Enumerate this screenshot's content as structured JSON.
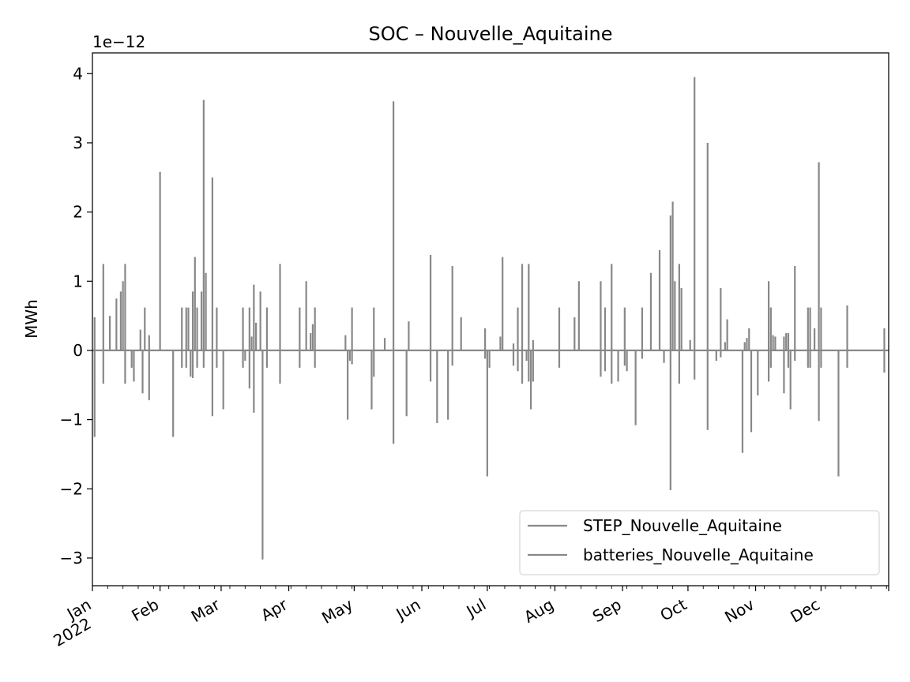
{
  "chart_data": {
    "type": "line",
    "title": "SOC – Nouvelle_Aquitaine",
    "ylabel": "MWh",
    "xlabel": "",
    "y_offset_label": "1e−12",
    "y_scale_factor": 1e-12,
    "xlim": [
      "2022-01-01",
      "2023-01-01"
    ],
    "ylim": [
      -3.4,
      4.3
    ],
    "y_ticks": [
      -3,
      -2,
      -1,
      0,
      1,
      2,
      3,
      4
    ],
    "y_tick_labels": [
      "−3",
      "−2",
      "−1",
      "0",
      "1",
      "2",
      "3",
      "4"
    ],
    "x_tick_labels": [
      {
        "date": "2022-01-01",
        "label": "Jan",
        "label2": "2022"
      },
      {
        "date": "2022-02-01",
        "label": "Feb"
      },
      {
        "date": "2022-03-01",
        "label": "Mar"
      },
      {
        "date": "2022-04-01",
        "label": "Apr"
      },
      {
        "date": "2022-05-01",
        "label": "May"
      },
      {
        "date": "2022-06-01",
        "label": "Jun"
      },
      {
        "date": "2022-07-01",
        "label": "Jul"
      },
      {
        "date": "2022-08-01",
        "label": "Aug"
      },
      {
        "date": "2022-09-01",
        "label": "Sep"
      },
      {
        "date": "2022-10-01",
        "label": "Oct"
      },
      {
        "date": "2022-11-01",
        "label": "Nov"
      },
      {
        "date": "2022-12-01",
        "label": "Dec"
      }
    ],
    "legend_position": "lower-right",
    "grid": false,
    "series": [
      {
        "name": "STEP_Nouvelle_Aquitaine",
        "color": "#888888",
        "baseline": 0,
        "values": [
          0,
          0
        ]
      },
      {
        "name": "batteries_Nouvelle_Aquitaine",
        "color": "#888888",
        "baseline": 0,
        "spikes": [
          [
            "2022-01-02",
            -1.25
          ],
          [
            "2022-01-02",
            0.48
          ],
          [
            "2022-01-06",
            1.25
          ],
          [
            "2022-01-06",
            -0.48
          ],
          [
            "2022-01-09",
            0.5
          ],
          [
            "2022-01-12",
            0.75
          ],
          [
            "2022-01-14",
            0.85
          ],
          [
            "2022-01-15",
            1.0
          ],
          [
            "2022-01-16",
            1.25
          ],
          [
            "2022-01-16",
            -0.48
          ],
          [
            "2022-01-19",
            -0.25
          ],
          [
            "2022-01-20",
            -0.45
          ],
          [
            "2022-01-23",
            0.3
          ],
          [
            "2022-01-24",
            -0.62
          ],
          [
            "2022-01-25",
            0.62
          ],
          [
            "2022-01-27",
            -0.72
          ],
          [
            "2022-01-27",
            0.22
          ],
          [
            "2022-02-01",
            2.58
          ],
          [
            "2022-02-07",
            -1.25
          ],
          [
            "2022-02-11",
            0.62
          ],
          [
            "2022-02-11",
            -0.25
          ],
          [
            "2022-02-13",
            0.62
          ],
          [
            "2022-02-13",
            -0.25
          ],
          [
            "2022-02-14",
            0.62
          ],
          [
            "2022-02-15",
            -0.38
          ],
          [
            "2022-02-16",
            0.85
          ],
          [
            "2022-02-16",
            -0.4
          ],
          [
            "2022-02-17",
            1.35
          ],
          [
            "2022-02-18",
            0.62
          ],
          [
            "2022-02-18",
            -0.25
          ],
          [
            "2022-02-20",
            0.85
          ],
          [
            "2022-02-21",
            3.62
          ],
          [
            "2022-02-21",
            -0.25
          ],
          [
            "2022-02-22",
            1.12
          ],
          [
            "2022-02-25",
            -0.95
          ],
          [
            "2022-02-25",
            2.5
          ],
          [
            "2022-02-27",
            0.62
          ],
          [
            "2022-02-27",
            -0.25
          ],
          [
            "2022-03-02",
            -0.85
          ],
          [
            "2022-03-11",
            0.62
          ],
          [
            "2022-03-11",
            -0.25
          ],
          [
            "2022-03-12",
            -0.15
          ],
          [
            "2022-03-14",
            0.62
          ],
          [
            "2022-03-14",
            -0.55
          ],
          [
            "2022-03-15",
            0.2
          ],
          [
            "2022-03-16",
            0.95
          ],
          [
            "2022-03-16",
            -0.9
          ],
          [
            "2022-03-17",
            0.4
          ],
          [
            "2022-03-19",
            0.85
          ],
          [
            "2022-03-20",
            -3.02
          ],
          [
            "2022-03-22",
            0.62
          ],
          [
            "2022-03-22",
            -0.25
          ],
          [
            "2022-03-28",
            1.25
          ],
          [
            "2022-03-28",
            -0.48
          ],
          [
            "2022-04-06",
            0.62
          ],
          [
            "2022-04-06",
            -0.25
          ],
          [
            "2022-04-09",
            1.0
          ],
          [
            "2022-04-11",
            0.25
          ],
          [
            "2022-04-12",
            0.38
          ],
          [
            "2022-04-13",
            0.62
          ],
          [
            "2022-04-13",
            -0.25
          ],
          [
            "2022-04-27",
            0.22
          ],
          [
            "2022-04-28",
            -1.0
          ],
          [
            "2022-04-29",
            -0.15
          ],
          [
            "2022-04-30",
            0.62
          ],
          [
            "2022-04-30",
            -0.2
          ],
          [
            "2022-05-09",
            -0.85
          ],
          [
            "2022-05-10",
            0.62
          ],
          [
            "2022-05-10",
            -0.38
          ],
          [
            "2022-05-15",
            0.18
          ],
          [
            "2022-05-19",
            3.6
          ],
          [
            "2022-05-19",
            -1.35
          ],
          [
            "2022-05-25",
            -0.95
          ],
          [
            "2022-05-26",
            0.42
          ],
          [
            "2022-06-05",
            1.38
          ],
          [
            "2022-06-05",
            -0.45
          ],
          [
            "2022-06-08",
            -1.05
          ],
          [
            "2022-06-13",
            -1.0
          ],
          [
            "2022-06-15",
            1.22
          ],
          [
            "2022-06-15",
            -0.22
          ],
          [
            "2022-06-19",
            0.48
          ],
          [
            "2022-06-30",
            0.32
          ],
          [
            "2022-06-30",
            -0.12
          ],
          [
            "2022-07-01",
            -1.82
          ],
          [
            "2022-07-02",
            -0.25
          ],
          [
            "2022-07-07",
            0.2
          ],
          [
            "2022-07-08",
            1.35
          ],
          [
            "2022-07-13",
            0.1
          ],
          [
            "2022-07-13",
            -0.22
          ],
          [
            "2022-07-15",
            0.62
          ],
          [
            "2022-07-15",
            -0.3
          ],
          [
            "2022-07-17",
            1.25
          ],
          [
            "2022-07-17",
            -0.48
          ],
          [
            "2022-07-19",
            -0.15
          ],
          [
            "2022-07-20",
            1.25
          ],
          [
            "2022-07-20",
            -0.45
          ],
          [
            "2022-07-21",
            -0.85
          ],
          [
            "2022-07-22",
            0.15
          ],
          [
            "2022-07-22",
            -0.45
          ],
          [
            "2022-08-03",
            0.62
          ],
          [
            "2022-08-03",
            -0.25
          ],
          [
            "2022-08-10",
            0.48
          ],
          [
            "2022-08-12",
            1.0
          ],
          [
            "2022-08-22",
            1.0
          ],
          [
            "2022-08-22",
            -0.38
          ],
          [
            "2022-08-24",
            0.62
          ],
          [
            "2022-08-24",
            -0.3
          ],
          [
            "2022-08-27",
            1.25
          ],
          [
            "2022-08-27",
            -0.48
          ],
          [
            "2022-08-30",
            -0.45
          ],
          [
            "2022-09-02",
            0.62
          ],
          [
            "2022-09-02",
            -0.22
          ],
          [
            "2022-09-03",
            -0.3
          ],
          [
            "2022-09-07",
            -1.08
          ],
          [
            "2022-09-10",
            0.62
          ],
          [
            "2022-09-10",
            -0.12
          ],
          [
            "2022-09-14",
            1.12
          ],
          [
            "2022-09-18",
            1.45
          ],
          [
            "2022-09-20",
            -0.18
          ],
          [
            "2022-09-23",
            -2.02
          ],
          [
            "2022-09-23",
            1.95
          ],
          [
            "2022-09-24",
            2.15
          ],
          [
            "2022-09-25",
            1.0
          ],
          [
            "2022-09-27",
            1.25
          ],
          [
            "2022-09-27",
            -0.48
          ],
          [
            "2022-09-28",
            0.9
          ],
          [
            "2022-10-02",
            0.15
          ],
          [
            "2022-10-04",
            3.95
          ],
          [
            "2022-10-04",
            -0.42
          ],
          [
            "2022-10-10",
            3.0
          ],
          [
            "2022-10-10",
            -1.15
          ],
          [
            "2022-10-14",
            -0.15
          ],
          [
            "2022-10-16",
            0.9
          ],
          [
            "2022-10-16",
            -0.1
          ],
          [
            "2022-10-18",
            0.12
          ],
          [
            "2022-10-19",
            0.45
          ],
          [
            "2022-10-26",
            -1.48
          ],
          [
            "2022-10-27",
            0.12
          ],
          [
            "2022-10-28",
            0.18
          ],
          [
            "2022-10-29",
            0.32
          ],
          [
            "2022-10-30",
            -1.18
          ],
          [
            "2022-11-02",
            -0.65
          ],
          [
            "2022-11-07",
            1.0
          ],
          [
            "2022-11-07",
            -0.45
          ],
          [
            "2022-11-08",
            0.62
          ],
          [
            "2022-11-08",
            -0.25
          ],
          [
            "2022-11-09",
            0.22
          ],
          [
            "2022-11-10",
            0.2
          ],
          [
            "2022-11-14",
            -0.62
          ],
          [
            "2022-11-14",
            0.2
          ],
          [
            "2022-11-15",
            0.25
          ],
          [
            "2022-11-16",
            0.25
          ],
          [
            "2022-11-16",
            -0.25
          ],
          [
            "2022-11-17",
            -0.85
          ],
          [
            "2022-11-19",
            1.22
          ],
          [
            "2022-11-19",
            -0.15
          ],
          [
            "2022-11-25",
            0.62
          ],
          [
            "2022-11-25",
            -0.25
          ],
          [
            "2022-11-26",
            0.62
          ],
          [
            "2022-11-26",
            -0.25
          ],
          [
            "2022-11-28",
            0.32
          ],
          [
            "2022-11-30",
            2.72
          ],
          [
            "2022-11-30",
            -1.02
          ],
          [
            "2022-12-01",
            0.62
          ],
          [
            "2022-12-01",
            -0.25
          ],
          [
            "2022-12-09",
            -1.82
          ],
          [
            "2022-12-13",
            0.65
          ],
          [
            "2022-12-13",
            -0.25
          ],
          [
            "2022-12-30",
            0.32
          ],
          [
            "2022-12-30",
            -0.32
          ]
        ]
      }
    ]
  }
}
